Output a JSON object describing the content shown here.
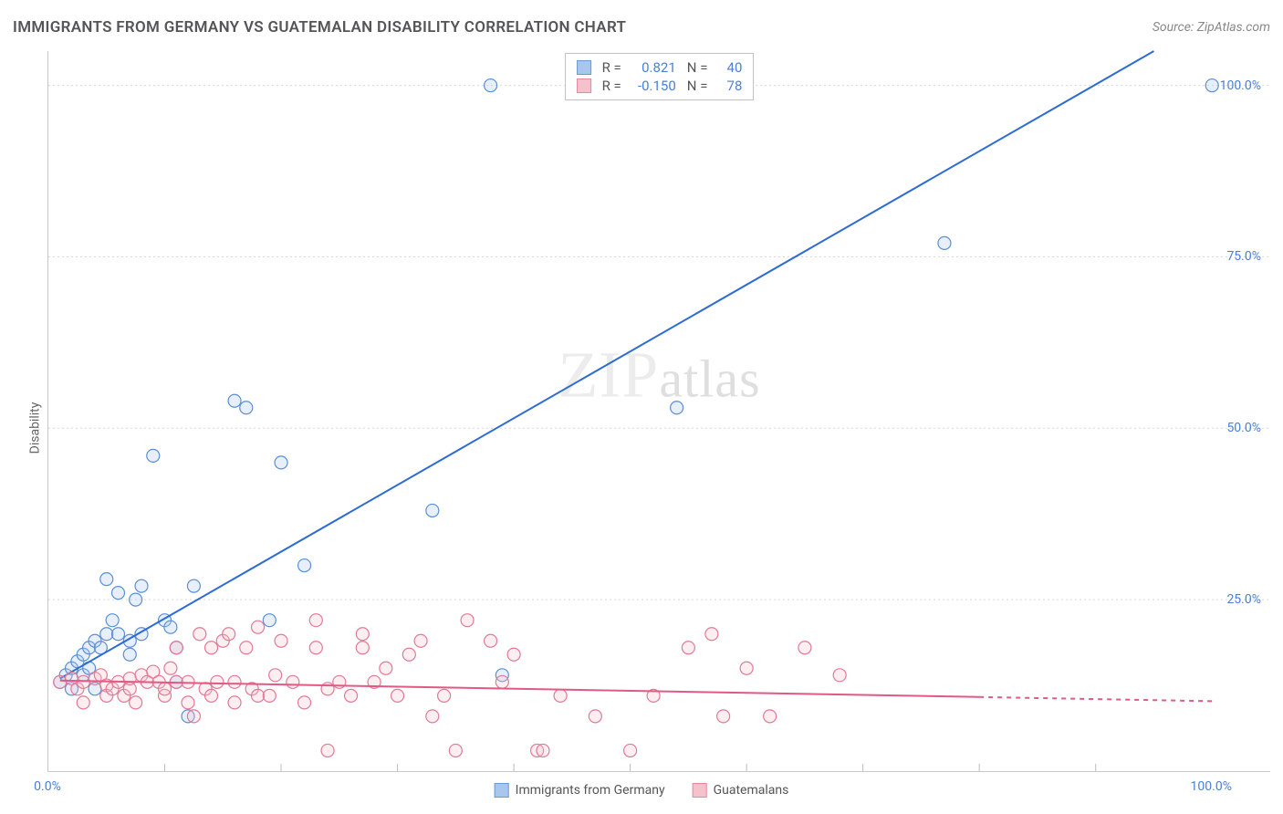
{
  "title": "IMMIGRANTS FROM GERMANY VS GUATEMALAN DISABILITY CORRELATION CHART",
  "source_label": "Source: ZipAtlas.com",
  "watermark": {
    "zip": "ZIP",
    "atlas": "atlas"
  },
  "ylabel": "Disability",
  "chart": {
    "type": "scatter",
    "xlim": [
      0,
      105
    ],
    "ylim": [
      0,
      105
    ],
    "x_tick_labels": [
      {
        "value": 0,
        "label": "0.0%"
      },
      {
        "value": 100,
        "label": "100.0%"
      }
    ],
    "x_minor_ticks": [
      10,
      20,
      30,
      40,
      50,
      60,
      70,
      80,
      90
    ],
    "y_tick_labels": [
      {
        "value": 25,
        "label": "25.0%"
      },
      {
        "value": 50,
        "label": "50.0%"
      },
      {
        "value": 75,
        "label": "75.0%"
      },
      {
        "value": 100,
        "label": "100.0%"
      }
    ],
    "grid_color": "#d8d8d8",
    "grid_dash": "2,3",
    "background_color": "#ffffff",
    "marker_radius": 7,
    "marker_stroke_width": 1.2,
    "marker_fill_opacity": 0.28,
    "line_width": 2,
    "legend_box": {
      "rows": [
        {
          "swatch_fill": "#a9c6ec",
          "swatch_stroke": "#6a9ad6",
          "r_label": "R =",
          "r_value": "0.821",
          "n_label": "N =",
          "n_value": "40"
        },
        {
          "swatch_fill": "#f5c1cc",
          "swatch_stroke": "#e68aa2",
          "r_label": "R =",
          "r_value": "-0.150",
          "n_label": "N =",
          "n_value": "78"
        }
      ]
    },
    "legend_bottom": [
      {
        "swatch_fill": "#a9c6ec",
        "swatch_stroke": "#6a9ad6",
        "label": "Immigrants from Germany"
      },
      {
        "swatch_fill": "#f5c1cc",
        "swatch_stroke": "#e68aa2",
        "label": "Guatemalans"
      }
    ],
    "series": [
      {
        "name": "Immigrants from Germany",
        "color_stroke": "#5b8fd6",
        "color_fill": "#a9c6ec",
        "trend_color": "#2d6cd1",
        "trend": {
          "x1": 1,
          "y1": 13.5,
          "x2": 95,
          "y2": 105
        },
        "trend_dash_from_x": null,
        "points": [
          [
            1,
            13
          ],
          [
            1.5,
            14
          ],
          [
            2,
            15
          ],
          [
            2,
            12
          ],
          [
            2.5,
            16
          ],
          [
            3,
            14
          ],
          [
            3,
            17
          ],
          [
            3.5,
            15
          ],
          [
            3.5,
            18
          ],
          [
            4,
            19
          ],
          [
            4,
            12
          ],
          [
            4.5,
            18
          ],
          [
            5,
            20
          ],
          [
            5,
            28
          ],
          [
            5.5,
            22
          ],
          [
            6,
            20
          ],
          [
            6,
            26
          ],
          [
            7,
            19
          ],
          [
            7,
            17
          ],
          [
            7.5,
            25
          ],
          [
            8,
            20
          ],
          [
            8,
            27
          ],
          [
            9,
            46
          ],
          [
            10,
            22
          ],
          [
            10.5,
            21
          ],
          [
            11,
            18
          ],
          [
            11,
            13
          ],
          [
            12,
            8
          ],
          [
            12.5,
            27
          ],
          [
            16,
            54
          ],
          [
            17,
            53
          ],
          [
            19,
            22
          ],
          [
            20,
            45
          ],
          [
            22,
            30
          ],
          [
            33,
            38
          ],
          [
            38,
            100
          ],
          [
            39,
            14
          ],
          [
            54,
            53
          ],
          [
            77,
            77
          ],
          [
            100,
            100
          ]
        ]
      },
      {
        "name": "Guatemalans",
        "color_stroke": "#e27a95",
        "color_fill": "#f5c1cc",
        "trend_color": "#e05a83",
        "trend": {
          "x1": 1,
          "y1": 13.2,
          "x2": 100,
          "y2": 10.2
        },
        "trend_dash_from_x": 80,
        "points": [
          [
            1,
            13
          ],
          [
            2,
            13.5
          ],
          [
            2.5,
            12
          ],
          [
            3,
            13
          ],
          [
            3,
            10
          ],
          [
            4,
            13.5
          ],
          [
            4.5,
            14
          ],
          [
            5,
            12.5
          ],
          [
            5,
            11
          ],
          [
            5.5,
            12
          ],
          [
            6,
            13
          ],
          [
            6.5,
            11
          ],
          [
            7,
            12
          ],
          [
            7,
            13.5
          ],
          [
            7.5,
            10
          ],
          [
            8,
            14
          ],
          [
            8.5,
            13
          ],
          [
            9,
            14.5
          ],
          [
            9.5,
            13
          ],
          [
            10,
            11
          ],
          [
            10,
            12
          ],
          [
            10.5,
            15
          ],
          [
            11,
            13
          ],
          [
            11,
            18
          ],
          [
            12,
            10
          ],
          [
            12,
            13
          ],
          [
            12.5,
            8
          ],
          [
            13,
            20
          ],
          [
            13.5,
            12
          ],
          [
            14,
            11
          ],
          [
            14,
            18
          ],
          [
            14.5,
            13
          ],
          [
            15,
            19
          ],
          [
            15.5,
            20
          ],
          [
            16,
            10
          ],
          [
            16,
            13
          ],
          [
            17,
            18
          ],
          [
            17.5,
            12
          ],
          [
            18,
            11
          ],
          [
            18,
            21
          ],
          [
            19,
            11
          ],
          [
            19.5,
            14
          ],
          [
            20,
            19
          ],
          [
            21,
            13
          ],
          [
            22,
            10
          ],
          [
            23,
            22
          ],
          [
            23,
            18
          ],
          [
            24,
            12
          ],
          [
            24,
            3
          ],
          [
            25,
            13
          ],
          [
            26,
            11
          ],
          [
            27,
            18
          ],
          [
            27,
            20
          ],
          [
            28,
            13
          ],
          [
            29,
            15
          ],
          [
            30,
            11
          ],
          [
            31,
            17
          ],
          [
            32,
            19
          ],
          [
            33,
            8
          ],
          [
            34,
            11
          ],
          [
            35,
            3
          ],
          [
            36,
            22
          ],
          [
            38,
            19
          ],
          [
            39,
            13
          ],
          [
            40,
            17
          ],
          [
            42,
            3
          ],
          [
            42.5,
            3
          ],
          [
            44,
            11
          ],
          [
            47,
            8
          ],
          [
            50,
            3
          ],
          [
            52,
            11
          ],
          [
            55,
            18
          ],
          [
            57,
            20
          ],
          [
            58,
            8
          ],
          [
            60,
            15
          ],
          [
            62,
            8
          ],
          [
            65,
            18
          ],
          [
            68,
            14
          ]
        ]
      }
    ]
  }
}
